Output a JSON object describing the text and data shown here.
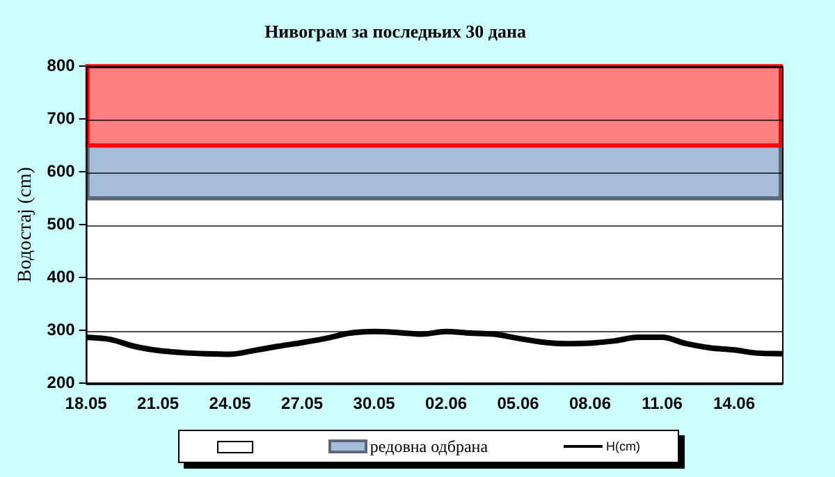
{
  "chart_data": {
    "type": "line",
    "title": "Нивограм за последњих 30 дана",
    "ylabel": "Водостај (cm)",
    "categories": [
      "18.05",
      null,
      null,
      "21.05",
      null,
      null,
      "24.05",
      null,
      null,
      "27.05",
      null,
      null,
      "30.05",
      null,
      null,
      "02.06",
      null,
      null,
      "05.06",
      null,
      null,
      "08.06",
      null,
      null,
      "11.06",
      null,
      null,
      "14.06",
      null,
      null
    ],
    "series": [
      {
        "name": "H(cm)",
        "color": "#000000",
        "values": [
          287,
          283,
          270,
          262,
          258,
          256,
          255,
          262,
          270,
          277,
          285,
          295,
          298,
          296,
          293,
          298,
          295,
          293,
          285,
          278,
          275,
          276,
          280,
          287,
          287,
          275,
          267,
          263,
          257,
          256
        ]
      }
    ],
    "bands": [
      {
        "axis": "y",
        "from": 550,
        "to": 650,
        "label": "редовна одбрана",
        "color": "#a6bddb"
      },
      {
        "axis": "y",
        "from": 650,
        "to": 800,
        "color": "#ff8080"
      }
    ],
    "ylim": [
      200,
      800
    ],
    "yticks": [
      200,
      300,
      400,
      500,
      600,
      700,
      800
    ],
    "grid": "y",
    "legend": "bottom",
    "marker": "none",
    "line_style": "solid"
  }
}
